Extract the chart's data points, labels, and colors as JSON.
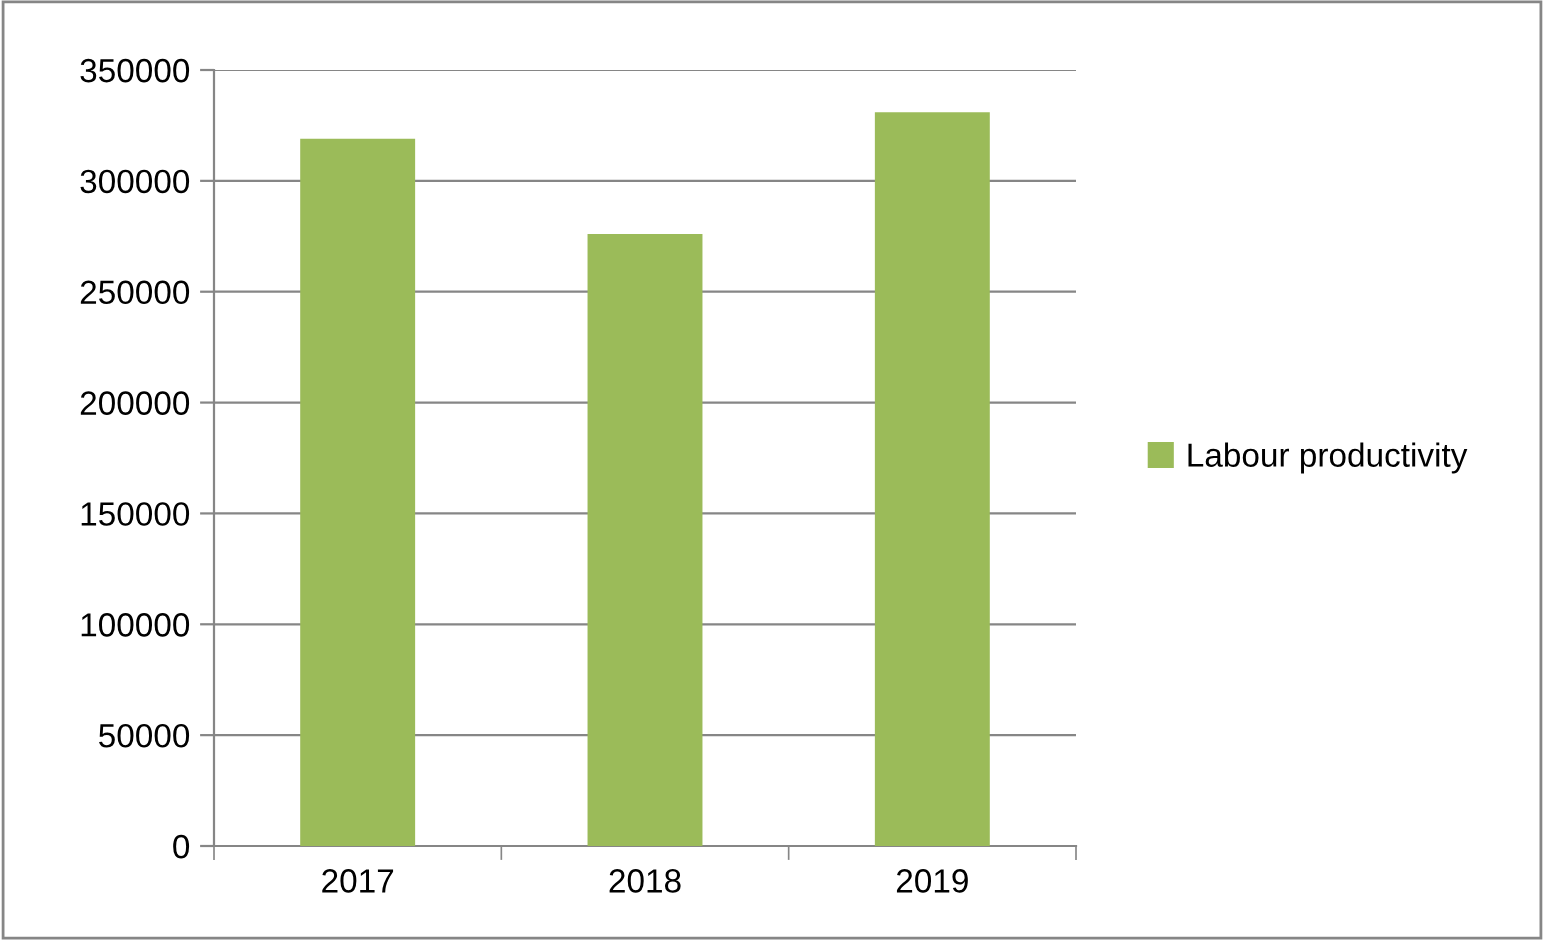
{
  "chart_data": {
    "type": "bar",
    "categories": [
      "2017",
      "2018",
      "2019"
    ],
    "series": [
      {
        "name": "Labour productivity",
        "color": "#9bbb59",
        "values": [
          319000,
          276000,
          331000
        ]
      }
    ],
    "ylim": [
      0,
      350000
    ],
    "yticks": [
      0,
      50000,
      100000,
      150000,
      200000,
      250000,
      300000,
      350000
    ],
    "grid": "y",
    "legend": "right"
  }
}
